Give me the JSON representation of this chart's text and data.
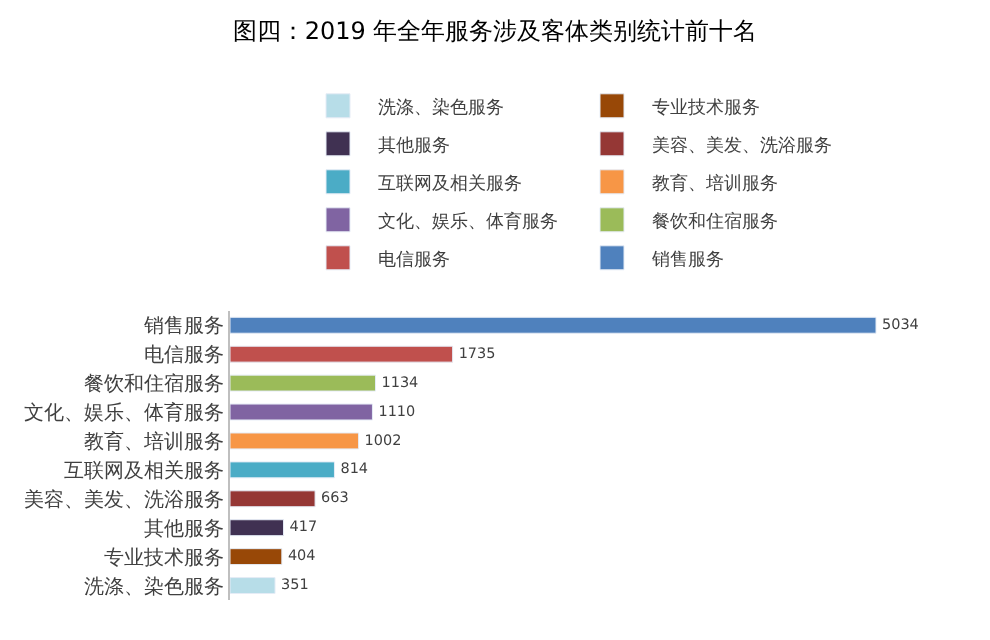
{
  "chart_data": {
    "type": "bar",
    "orientation": "horizontal",
    "title": "图四：2019 年全年服务涉及客体类别统计前十名",
    "categories": [
      "销售服务",
      "电信服务",
      "餐饮和住宿服务",
      "文化、娱乐、体育服务",
      "教育、培训服务",
      "互联网及相关服务",
      "美容、美发、洗浴服务",
      "其他服务",
      "专业技术服务",
      "洗涤、染色服务"
    ],
    "series": [
      {
        "name": "洗涤、染色服务",
        "color": "#b7dde8",
        "values": [
          null,
          null,
          null,
          null,
          null,
          null,
          null,
          null,
          null,
          351
        ]
      },
      {
        "name": "专业技术服务",
        "color": "#984807",
        "values": [
          null,
          null,
          null,
          null,
          null,
          null,
          null,
          null,
          404,
          null
        ]
      },
      {
        "name": "其他服务",
        "color": "#403152",
        "values": [
          null,
          null,
          null,
          null,
          null,
          null,
          null,
          417,
          null,
          null
        ]
      },
      {
        "name": "美容、美发、洗浴服务",
        "color": "#953735",
        "values": [
          null,
          null,
          null,
          null,
          null,
          null,
          663,
          null,
          null,
          null
        ]
      },
      {
        "name": "互联网及相关服务",
        "color": "#4bacc6",
        "values": [
          null,
          null,
          null,
          null,
          null,
          814,
          null,
          null,
          null,
          null
        ]
      },
      {
        "name": "教育、培训服务",
        "color": "#f79646",
        "values": [
          null,
          null,
          null,
          null,
          1002,
          null,
          null,
          null,
          null,
          null
        ]
      },
      {
        "name": "文化、娱乐、体育服务",
        "color": "#8064a2",
        "values": [
          null,
          null,
          null,
          1110,
          null,
          null,
          null,
          null,
          null,
          null
        ]
      },
      {
        "name": "餐饮和住宿服务",
        "color": "#9bbb59",
        "values": [
          null,
          null,
          1134,
          null,
          null,
          null,
          null,
          null,
          null,
          null
        ]
      },
      {
        "name": "电信服务",
        "color": "#c0504d",
        "values": [
          null,
          1735,
          null,
          null,
          null,
          null,
          null,
          null,
          null,
          null
        ]
      },
      {
        "name": "销售服务",
        "color": "#4f81bd",
        "values": [
          5034,
          null,
          null,
          null,
          null,
          null,
          null,
          null,
          null,
          null
        ]
      }
    ],
    "data_labels": true,
    "legend": "top",
    "tick_labels": "y"
  }
}
